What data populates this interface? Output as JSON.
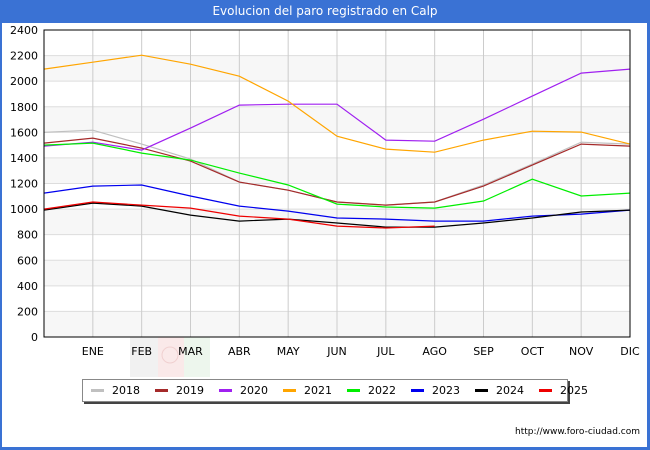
{
  "header": {
    "title": "Evolucion del paro registrado en Calp"
  },
  "credit": "http://www.foro-ciudad.com",
  "chart_data": {
    "type": "line",
    "title": "Evolucion del paro registrado en Calp",
    "xlabel": "",
    "ylabel": "",
    "categories": [
      "",
      "ENE",
      "FEB",
      "MAR",
      "ABR",
      "MAY",
      "JUN",
      "JUL",
      "AGO",
      "SEP",
      "OCT",
      "NOV",
      "DIC"
    ],
    "ylim": [
      0,
      2400
    ],
    "yticks": [
      0,
      200,
      400,
      600,
      800,
      1000,
      1200,
      1400,
      1600,
      1800,
      2000,
      2200,
      2400
    ],
    "grid": true,
    "legend_position": "bottom",
    "series": [
      {
        "name": "2018",
        "color": "#c0c0c0",
        "values": [
          1600,
          1617,
          1508,
          1391,
          1211,
          1148,
          1055,
          1031,
          1055,
          1188,
          1352,
          1523,
          1508
        ]
      },
      {
        "name": "2019",
        "color": "#a52a2a",
        "values": [
          1516,
          1555,
          1477,
          1375,
          1211,
          1148,
          1055,
          1031,
          1055,
          1180,
          1344,
          1508,
          1492
        ]
      },
      {
        "name": "2020",
        "color": "#a020f0",
        "values": [
          1492,
          1523,
          1461,
          1633,
          1813,
          1820,
          1820,
          1539,
          1531,
          1703,
          1883,
          2063,
          2094
        ]
      },
      {
        "name": "2021",
        "color": "#ffa500",
        "values": [
          2094,
          2148,
          2203,
          2133,
          2039,
          1844,
          1570,
          1469,
          1445,
          1539,
          1609,
          1602,
          1508
        ]
      },
      {
        "name": "2022",
        "color": "#00ee00",
        "values": [
          1500,
          1516,
          1438,
          1383,
          1281,
          1188,
          1039,
          1016,
          1008,
          1063,
          1234,
          1102,
          1125
        ]
      },
      {
        "name": "2023",
        "color": "#0000ee",
        "values": [
          1125,
          1180,
          1188,
          1102,
          1023,
          984,
          930,
          922,
          906,
          906,
          945,
          961,
          992
        ]
      },
      {
        "name": "2024",
        "color": "#000000",
        "values": [
          992,
          1047,
          1023,
          953,
          906,
          922,
          891,
          859,
          859,
          891,
          930,
          977,
          992
        ]
      },
      {
        "name": "2025",
        "color": "#ee0000",
        "values": [
          1000,
          1055,
          1031,
          1008,
          945,
          922,
          867,
          852,
          867,
          null,
          null,
          null,
          null
        ]
      }
    ]
  }
}
